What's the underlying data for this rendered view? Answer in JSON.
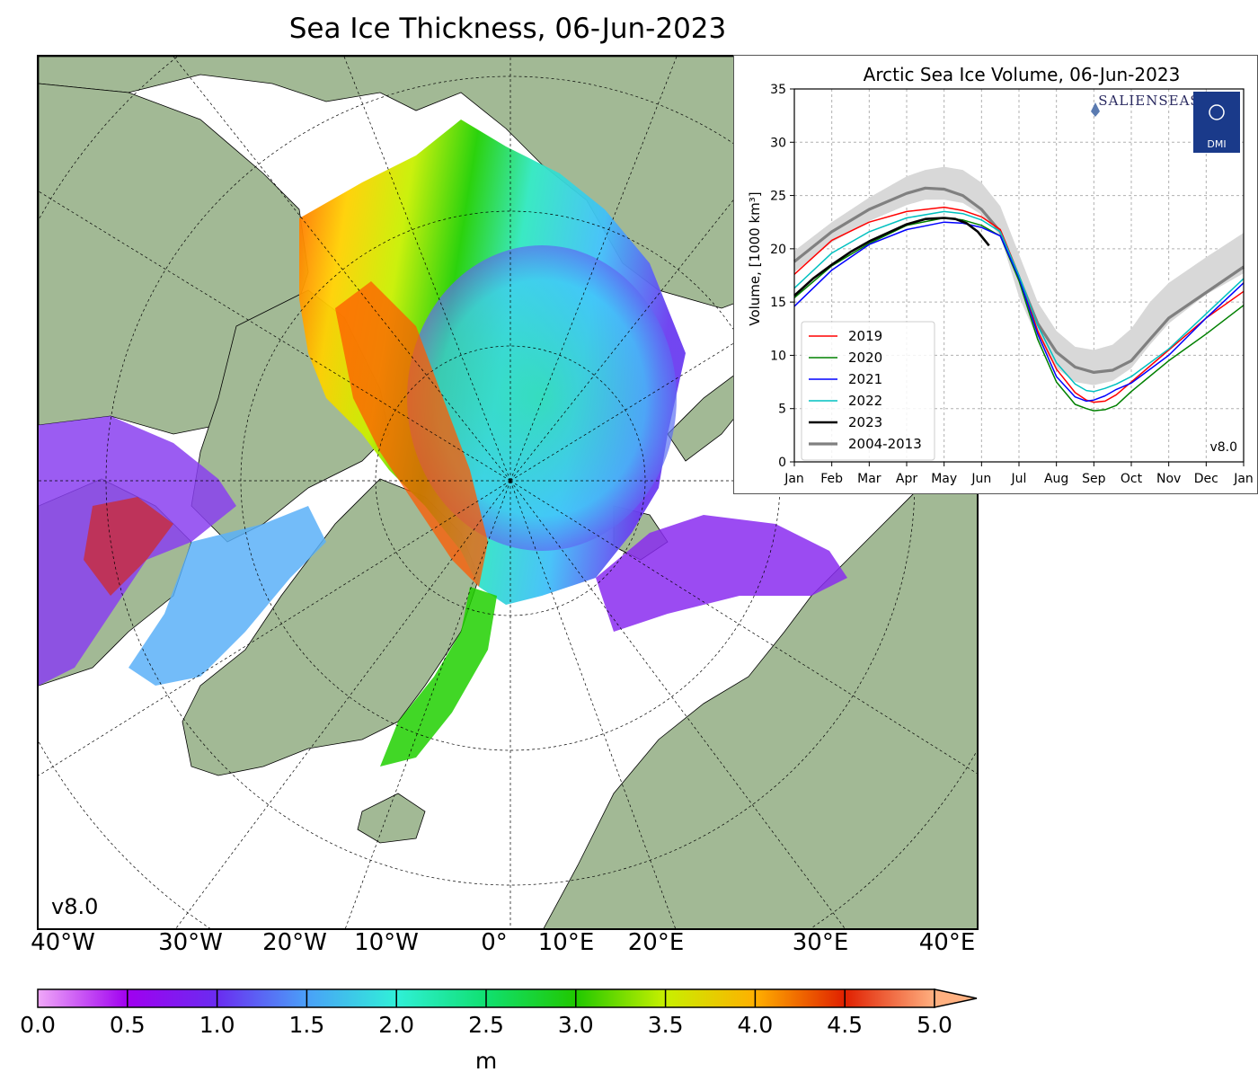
{
  "map": {
    "title": "Sea Ice Thickness, 06-Jun-2023",
    "version": "v8.0",
    "lon_labels": [
      "40°W",
      "30°W",
      "20°W",
      "10°W",
      "0°",
      "10°E",
      "20°E",
      "30°E",
      "40°E"
    ],
    "colors": {
      "land": "#a2b995",
      "water": "#ffffff",
      "rivers": "#8aaee0"
    }
  },
  "colorbar": {
    "ticks": [
      "0.0",
      "0.5",
      "1.0",
      "1.5",
      "2.0",
      "2.5",
      "3.0",
      "3.5",
      "4.0",
      "4.5",
      "5.0"
    ],
    "unit": "m",
    "colors": [
      "#f0a8f8",
      "#a000f0",
      "#6a2cf0",
      "#4aa0f8",
      "#30f0d8",
      "#10e070",
      "#20c800",
      "#c8f000",
      "#ffb000",
      "#e02000",
      "#ffb080"
    ]
  },
  "chart_data": {
    "type": "line",
    "title": "Arctic Sea Ice Volume, 06-Jun-2023",
    "xlabel": "",
    "ylabel": "Volume, [1000 km³]",
    "x_ticks": [
      "Jan",
      "Feb",
      "Mar",
      "Apr",
      "May",
      "Jun",
      "Jul",
      "Aug",
      "Sep",
      "Oct",
      "Nov",
      "Dec",
      "Jan"
    ],
    "y_ticks": [
      0,
      5,
      10,
      15,
      20,
      25,
      30,
      35
    ],
    "ylim": [
      0,
      35
    ],
    "xlim": [
      0,
      12
    ],
    "grid": true,
    "legend_position": "lower-left",
    "logo_text": "SALIENSEAS",
    "badge_text": "DMI",
    "version": "v8.0",
    "band": {
      "name": "2004-2013",
      "x": [
        0,
        1,
        2,
        3,
        3.5,
        4,
        4.5,
        5,
        5.5,
        6,
        6.5,
        7,
        7.5,
        8,
        8.5,
        9,
        9.5,
        10,
        11,
        12
      ],
      "upper": [
        19.8,
        22.5,
        24.8,
        26.8,
        27.4,
        27.7,
        27.4,
        26.2,
        24,
        19.5,
        15,
        12.3,
        10.8,
        10.5,
        11,
        12.5,
        15,
        16.8,
        19.2,
        21.5
      ],
      "lower": [
        17.8,
        20.6,
        22.6,
        24.1,
        24.6,
        24.6,
        24.3,
        23.2,
        21.2,
        15.5,
        11.5,
        8.8,
        7.5,
        7.2,
        7.6,
        8.8,
        11,
        13,
        15.7,
        17.7
      ]
    },
    "series": [
      {
        "name": "2019",
        "color": "#ff0000",
        "width": 1.5,
        "x": [
          0,
          1,
          2,
          3,
          4,
          4.5,
          5,
          5.5,
          6,
          6.5,
          7,
          7.5,
          7.8,
          8,
          8.3,
          8.6,
          9,
          10,
          11,
          12
        ],
        "y": [
          17.6,
          20.8,
          22.5,
          23.5,
          23.9,
          23.6,
          23,
          21.8,
          17.5,
          12.3,
          8.7,
          6.5,
          5.8,
          5.6,
          5.7,
          6.3,
          7.5,
          10.5,
          13.5,
          16.0
        ]
      },
      {
        "name": "2020",
        "color": "#008000",
        "width": 1.5,
        "x": [
          0,
          1,
          2,
          3,
          4,
          4.5,
          5,
          5.5,
          6,
          6.5,
          7,
          7.5,
          7.8,
          8,
          8.3,
          8.6,
          9,
          10,
          11,
          12
        ],
        "y": [
          15.4,
          18.4,
          20.5,
          22.2,
          22.9,
          22.7,
          22.2,
          21.2,
          17,
          11.5,
          7.5,
          5.4,
          5,
          4.8,
          4.9,
          5.3,
          6.6,
          9.5,
          12,
          14.7
        ]
      },
      {
        "name": "2021",
        "color": "#0000ff",
        "width": 1.5,
        "x": [
          0,
          1,
          2,
          3,
          4,
          4.5,
          5,
          5.5,
          6,
          6.5,
          7,
          7.5,
          7.8,
          8,
          8.3,
          8.6,
          9,
          10,
          11,
          12
        ],
        "y": [
          14.6,
          18,
          20.4,
          21.8,
          22.5,
          22.4,
          22,
          21.2,
          17.3,
          12,
          8,
          6.1,
          5.7,
          5.8,
          6.2,
          6.8,
          7.4,
          10,
          13.5,
          16.8
        ]
      },
      {
        "name": "2022",
        "color": "#00c0c0",
        "width": 1.5,
        "x": [
          0,
          1,
          2,
          3,
          4,
          4.5,
          5,
          5.5,
          6,
          6.5,
          7,
          7.5,
          7.8,
          8,
          8.3,
          8.6,
          9,
          10,
          11,
          12
        ],
        "y": [
          16.3,
          19.6,
          21.6,
          22.9,
          23.5,
          23.3,
          22.7,
          21.6,
          17.5,
          12.8,
          9.3,
          7.3,
          6.7,
          6.6,
          6.9,
          7.3,
          8,
          10.6,
          13.9,
          17.2
        ]
      },
      {
        "name": "2023",
        "color": "#000000",
        "width": 2.6,
        "x": [
          0,
          0.5,
          1,
          1.5,
          2,
          2.5,
          3,
          3.5,
          4,
          4.3,
          4.6,
          4.9,
          5.2
        ],
        "y": [
          15.6,
          17.2,
          18.5,
          19.7,
          20.7,
          21.5,
          22.3,
          22.8,
          22.9,
          22.8,
          22.4,
          21.6,
          20.3
        ]
      },
      {
        "name": "2004-2013",
        "color": "#808080",
        "width": 3.2,
        "x": [
          0,
          1,
          2,
          3,
          3.5,
          4,
          4.5,
          5,
          5.5,
          6,
          6.5,
          7,
          7.5,
          8,
          8.5,
          9,
          9.5,
          10,
          11,
          12
        ],
        "y": [
          18.8,
          21.6,
          23.7,
          25.2,
          25.7,
          25.6,
          25,
          23.7,
          21.6,
          17.3,
          13,
          10.3,
          8.9,
          8.4,
          8.6,
          9.5,
          11.5,
          13.5,
          15.9,
          18.3
        ]
      }
    ]
  }
}
